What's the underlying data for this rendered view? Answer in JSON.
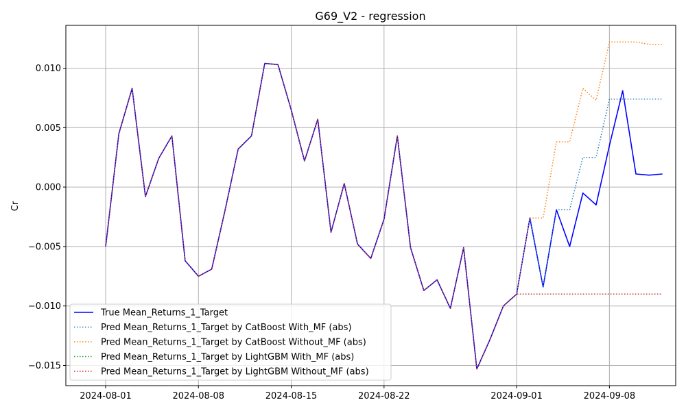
{
  "chart_data": {
    "type": "line",
    "title": "G69_V2 - regression",
    "xlabel": "",
    "ylabel": "Cr",
    "x_ticks": [
      "2024-08-01",
      "2024-08-08",
      "2024-08-15",
      "2024-08-22",
      "2024-09-01",
      "2024-09-08"
    ],
    "y_ticks": [
      "0.010",
      "0.005",
      "0.000",
      "−0.005",
      "−0.010",
      "−0.015"
    ],
    "y_tick_values": [
      0.01,
      0.005,
      0.0,
      -0.005,
      -0.01,
      -0.015
    ],
    "ylim": [
      -0.0167,
      0.0136
    ],
    "xlim": [
      "2024-07-29",
      "2024-09-13"
    ],
    "grid": true,
    "legend_position": "lower-left",
    "series": [
      {
        "name": "True Mean_Returns_1_Target",
        "color": "#0000ff",
        "style": "solid",
        "points": [
          [
            "2024-08-01",
            -0.005
          ],
          [
            "2024-08-02",
            0.0045
          ],
          [
            "2024-08-03",
            0.0083
          ],
          [
            "2024-08-04",
            -0.0008
          ],
          [
            "2024-08-05",
            0.0024
          ],
          [
            "2024-08-06",
            0.0043
          ],
          [
            "2024-08-07",
            -0.0062
          ],
          [
            "2024-08-08",
            -0.0075
          ],
          [
            "2024-08-09",
            -0.0069
          ],
          [
            "2024-08-10",
            -0.002
          ],
          [
            "2024-08-11",
            0.0032
          ],
          [
            "2024-08-12",
            0.0043
          ],
          [
            "2024-08-13",
            0.0104
          ],
          [
            "2024-08-14",
            0.0103
          ],
          [
            "2024-08-15",
            0.0065
          ],
          [
            "2024-08-16",
            0.0022
          ],
          [
            "2024-08-17",
            0.0057
          ],
          [
            "2024-08-18",
            -0.0038
          ],
          [
            "2024-08-19",
            0.0003
          ],
          [
            "2024-08-20",
            -0.0048
          ],
          [
            "2024-08-21",
            -0.006
          ],
          [
            "2024-08-22",
            -0.0027
          ],
          [
            "2024-08-23",
            0.0043
          ],
          [
            "2024-08-24",
            -0.0051
          ],
          [
            "2024-08-25",
            -0.0087
          ],
          [
            "2024-08-26",
            -0.0078
          ],
          [
            "2024-08-27",
            -0.0102
          ],
          [
            "2024-08-28",
            -0.0051
          ],
          [
            "2024-08-29",
            -0.0153
          ],
          [
            "2024-08-30",
            -0.0128
          ],
          [
            "2024-08-31",
            -0.01
          ],
          [
            "2024-09-01",
            -0.009
          ],
          [
            "2024-09-02",
            -0.0026
          ],
          [
            "2024-09-03",
            -0.0084
          ],
          [
            "2024-09-04",
            -0.0019
          ],
          [
            "2024-09-05",
            -0.005
          ],
          [
            "2024-09-06",
            -0.0005
          ],
          [
            "2024-09-07",
            -0.0015
          ],
          [
            "2024-09-08",
            0.0035
          ],
          [
            "2024-09-09",
            0.0081
          ],
          [
            "2024-09-10",
            0.0011
          ],
          [
            "2024-09-11",
            0.001
          ],
          [
            "2024-09-12",
            0.0011
          ]
        ]
      },
      {
        "name": "Pred Mean_Returns_1_Target by CatBoost With_MF (abs)",
        "color": "#1f77b4",
        "style": "dotted",
        "points": [
          [
            "2024-08-01",
            -0.005
          ],
          [
            "2024-08-02",
            0.0045
          ],
          [
            "2024-08-03",
            0.0083
          ],
          [
            "2024-08-04",
            -0.0008
          ],
          [
            "2024-08-05",
            0.0024
          ],
          [
            "2024-08-06",
            0.0043
          ],
          [
            "2024-08-07",
            -0.0062
          ],
          [
            "2024-08-08",
            -0.0075
          ],
          [
            "2024-08-09",
            -0.0069
          ],
          [
            "2024-08-10",
            -0.002
          ],
          [
            "2024-08-11",
            0.0032
          ],
          [
            "2024-08-12",
            0.0043
          ],
          [
            "2024-08-13",
            0.0104
          ],
          [
            "2024-08-14",
            0.0103
          ],
          [
            "2024-08-15",
            0.0065
          ],
          [
            "2024-08-16",
            0.0022
          ],
          [
            "2024-08-17",
            0.0057
          ],
          [
            "2024-08-18",
            -0.0038
          ],
          [
            "2024-08-19",
            0.0003
          ],
          [
            "2024-08-20",
            -0.0048
          ],
          [
            "2024-08-21",
            -0.006
          ],
          [
            "2024-08-22",
            -0.0027
          ],
          [
            "2024-08-23",
            0.0043
          ],
          [
            "2024-08-24",
            -0.0051
          ],
          [
            "2024-08-25",
            -0.0087
          ],
          [
            "2024-08-26",
            -0.0078
          ],
          [
            "2024-08-27",
            -0.0102
          ],
          [
            "2024-08-28",
            -0.0051
          ],
          [
            "2024-08-29",
            -0.0153
          ],
          [
            "2024-08-30",
            -0.0128
          ],
          [
            "2024-08-31",
            -0.01
          ],
          [
            "2024-09-01",
            -0.009
          ],
          [
            "2024-09-02",
            -0.0026
          ],
          [
            "2024-09-03",
            -0.0084
          ],
          [
            "2024-09-04",
            -0.0019
          ],
          [
            "2024-09-05",
            -0.0019
          ],
          [
            "2024-09-06",
            0.0025
          ],
          [
            "2024-09-07",
            0.0025
          ],
          [
            "2024-09-08",
            0.0074
          ],
          [
            "2024-09-09",
            0.0074
          ],
          [
            "2024-09-10",
            0.0074
          ],
          [
            "2024-09-11",
            0.0074
          ],
          [
            "2024-09-12",
            0.0074
          ]
        ]
      },
      {
        "name": "Pred Mean_Returns_1_Target by CatBoost Without_MF (abs)",
        "color": "#ff7f0e",
        "style": "dotted",
        "points": [
          [
            "2024-08-01",
            -0.005
          ],
          [
            "2024-08-02",
            0.0045
          ],
          [
            "2024-08-03",
            0.0083
          ],
          [
            "2024-08-04",
            -0.0008
          ],
          [
            "2024-08-05",
            0.0024
          ],
          [
            "2024-08-06",
            0.0043
          ],
          [
            "2024-08-07",
            -0.0062
          ],
          [
            "2024-08-08",
            -0.0075
          ],
          [
            "2024-08-09",
            -0.0069
          ],
          [
            "2024-08-10",
            -0.002
          ],
          [
            "2024-08-11",
            0.0032
          ],
          [
            "2024-08-12",
            0.0043
          ],
          [
            "2024-08-13",
            0.0104
          ],
          [
            "2024-08-14",
            0.0103
          ],
          [
            "2024-08-15",
            0.0065
          ],
          [
            "2024-08-16",
            0.0022
          ],
          [
            "2024-08-17",
            0.0057
          ],
          [
            "2024-08-18",
            -0.0038
          ],
          [
            "2024-08-19",
            0.0003
          ],
          [
            "2024-08-20",
            -0.0048
          ],
          [
            "2024-08-21",
            -0.006
          ],
          [
            "2024-08-22",
            -0.0027
          ],
          [
            "2024-08-23",
            0.0043
          ],
          [
            "2024-08-24",
            -0.0051
          ],
          [
            "2024-08-25",
            -0.0087
          ],
          [
            "2024-08-26",
            -0.0078
          ],
          [
            "2024-08-27",
            -0.0102
          ],
          [
            "2024-08-28",
            -0.0051
          ],
          [
            "2024-08-29",
            -0.0153
          ],
          [
            "2024-08-30",
            -0.0128
          ],
          [
            "2024-08-31",
            -0.01
          ],
          [
            "2024-09-01",
            -0.009
          ],
          [
            "2024-09-02",
            -0.0026
          ],
          [
            "2024-09-03",
            -0.0026
          ],
          [
            "2024-09-04",
            0.0038
          ],
          [
            "2024-09-05",
            0.0038
          ],
          [
            "2024-09-06",
            0.0083
          ],
          [
            "2024-09-07",
            0.0073
          ],
          [
            "2024-09-08",
            0.0122
          ],
          [
            "2024-09-09",
            0.0122
          ],
          [
            "2024-09-10",
            0.0122
          ],
          [
            "2024-09-11",
            0.012
          ],
          [
            "2024-09-12",
            0.012
          ]
        ]
      },
      {
        "name": "Pred Mean_Returns_1_Target by LightGBM With_MF (abs)",
        "color": "#2ca02c",
        "style": "dotted",
        "points": [
          [
            "2024-08-01",
            -0.005
          ],
          [
            "2024-08-02",
            0.0045
          ],
          [
            "2024-08-03",
            0.0083
          ],
          [
            "2024-08-04",
            -0.0008
          ],
          [
            "2024-08-05",
            0.0024
          ],
          [
            "2024-08-06",
            0.0043
          ],
          [
            "2024-08-07",
            -0.0062
          ],
          [
            "2024-08-08",
            -0.0075
          ],
          [
            "2024-08-09",
            -0.0069
          ],
          [
            "2024-08-10",
            -0.002
          ],
          [
            "2024-08-11",
            0.0032
          ],
          [
            "2024-08-12",
            0.0043
          ],
          [
            "2024-08-13",
            0.0104
          ],
          [
            "2024-08-14",
            0.0103
          ],
          [
            "2024-08-15",
            0.0065
          ],
          [
            "2024-08-16",
            0.0022
          ],
          [
            "2024-08-17",
            0.0057
          ],
          [
            "2024-08-18",
            -0.0038
          ],
          [
            "2024-08-19",
            0.0003
          ],
          [
            "2024-08-20",
            -0.0048
          ],
          [
            "2024-08-21",
            -0.006
          ],
          [
            "2024-08-22",
            -0.0027
          ],
          [
            "2024-08-23",
            0.0043
          ],
          [
            "2024-08-24",
            -0.0051
          ],
          [
            "2024-08-25",
            -0.0087
          ],
          [
            "2024-08-26",
            -0.0078
          ],
          [
            "2024-08-27",
            -0.0102
          ],
          [
            "2024-08-28",
            -0.0051
          ],
          [
            "2024-08-29",
            -0.0153
          ],
          [
            "2024-08-30",
            -0.0128
          ],
          [
            "2024-08-31",
            -0.01
          ],
          [
            "2024-09-01",
            -0.009
          ],
          [
            "2024-09-02",
            -0.009
          ],
          [
            "2024-09-03",
            -0.009
          ],
          [
            "2024-09-04",
            -0.009
          ],
          [
            "2024-09-05",
            -0.009
          ],
          [
            "2024-09-06",
            -0.009
          ],
          [
            "2024-09-07",
            -0.009
          ],
          [
            "2024-09-08",
            -0.009
          ],
          [
            "2024-09-09",
            -0.009
          ],
          [
            "2024-09-10",
            -0.009
          ],
          [
            "2024-09-11",
            -0.009
          ],
          [
            "2024-09-12",
            -0.009
          ]
        ]
      },
      {
        "name": "Pred Mean_Returns_1_Target by LightGBM Without_MF (abs)",
        "color": "#d62728",
        "style": "dotted",
        "points": [
          [
            "2024-08-01",
            -0.005
          ],
          [
            "2024-08-02",
            0.0045
          ],
          [
            "2024-08-03",
            0.0083
          ],
          [
            "2024-08-04",
            -0.0008
          ],
          [
            "2024-08-05",
            0.0024
          ],
          [
            "2024-08-06",
            0.0043
          ],
          [
            "2024-08-07",
            -0.0062
          ],
          [
            "2024-08-08",
            -0.0075
          ],
          [
            "2024-08-09",
            -0.0069
          ],
          [
            "2024-08-10",
            -0.002
          ],
          [
            "2024-08-11",
            0.0032
          ],
          [
            "2024-08-12",
            0.0043
          ],
          [
            "2024-08-13",
            0.0104
          ],
          [
            "2024-08-14",
            0.0103
          ],
          [
            "2024-08-15",
            0.0065
          ],
          [
            "2024-08-16",
            0.0022
          ],
          [
            "2024-08-17",
            0.0057
          ],
          [
            "2024-08-18",
            -0.0038
          ],
          [
            "2024-08-19",
            0.0003
          ],
          [
            "2024-08-20",
            -0.0048
          ],
          [
            "2024-08-21",
            -0.006
          ],
          [
            "2024-08-22",
            -0.0027
          ],
          [
            "2024-08-23",
            0.0043
          ],
          [
            "2024-08-24",
            -0.0051
          ],
          [
            "2024-08-25",
            -0.0087
          ],
          [
            "2024-08-26",
            -0.0078
          ],
          [
            "2024-08-27",
            -0.0102
          ],
          [
            "2024-08-28",
            -0.0051
          ],
          [
            "2024-08-29",
            -0.0153
          ],
          [
            "2024-08-30",
            -0.0128
          ],
          [
            "2024-08-31",
            -0.01
          ],
          [
            "2024-09-01",
            -0.009
          ],
          [
            "2024-09-02",
            -0.009
          ],
          [
            "2024-09-03",
            -0.009
          ],
          [
            "2024-09-04",
            -0.009
          ],
          [
            "2024-09-05",
            -0.009
          ],
          [
            "2024-09-06",
            -0.009
          ],
          [
            "2024-09-07",
            -0.009
          ],
          [
            "2024-09-08",
            -0.009
          ],
          [
            "2024-09-09",
            -0.009
          ],
          [
            "2024-09-10",
            -0.009
          ],
          [
            "2024-09-11",
            -0.009
          ],
          [
            "2024-09-12",
            -0.009
          ]
        ]
      }
    ]
  }
}
